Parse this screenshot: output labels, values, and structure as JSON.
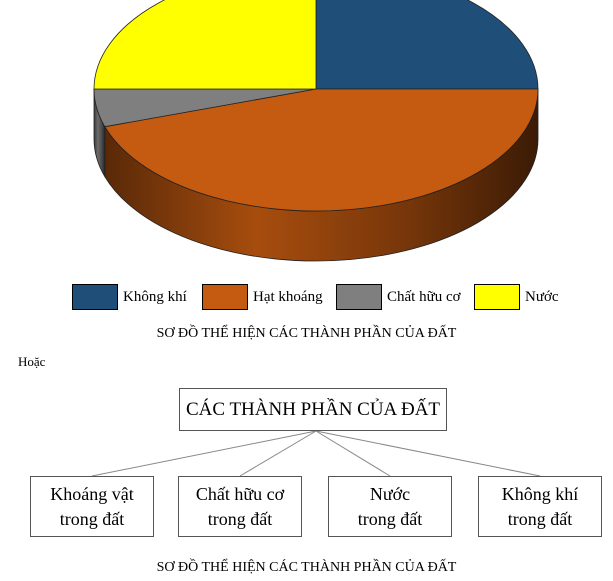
{
  "chart_data": {
    "type": "pie",
    "title": "SƠ ĐỒ THỂ HIỆN CÁC THÀNH PHẦN CỦA ĐẤT",
    "categories": [
      "Không khí",
      "Hạt khoáng",
      "Chất hữu cơ",
      "Nước"
    ],
    "values": [
      25,
      45,
      5,
      25
    ],
    "colors": [
      "#1f4e79",
      "#c55a11",
      "#7f7f7f",
      "#ffff00"
    ],
    "style": "3d",
    "legend_position": "bottom"
  },
  "or_label": "Hoặc",
  "diagram": {
    "root": "CÁC THÀNH PHẦN CỦA ĐẤT",
    "children": [
      {
        "line1": "Khoáng vật",
        "line2": "trong đất"
      },
      {
        "line1": "Chất hữu cơ",
        "line2": "trong đất"
      },
      {
        "line1": "Nước",
        "line2": "trong đất"
      },
      {
        "line1": "Không khí",
        "line2": "trong đất"
      }
    ],
    "caption": "SƠ ĐỒ THỂ HIỆN CÁC THÀNH PHẦN CỦA ĐẤT"
  }
}
